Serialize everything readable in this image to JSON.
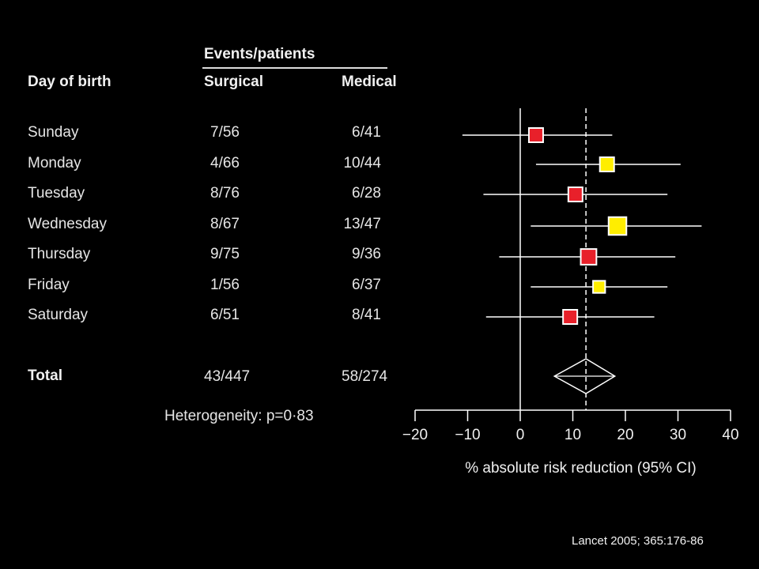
{
  "table": {
    "events_header": "Events/patients",
    "col_day": "Day of birth",
    "col_surgical": "Surgical",
    "col_medical": "Medical",
    "rows": [
      {
        "day": "Sunday",
        "surgical": "7/56",
        "medical": "6/41"
      },
      {
        "day": "Monday",
        "surgical": "4/66",
        "medical": "10/44"
      },
      {
        "day": "Tuesday",
        "surgical": "8/76",
        "medical": "6/28"
      },
      {
        "day": "Wednesday",
        "surgical": "8/67",
        "medical": "13/47"
      },
      {
        "day": "Thursday",
        "surgical": "9/75",
        "medical": "9/36"
      },
      {
        "day": "Friday",
        "surgical": "1/56",
        "medical": "6/37"
      },
      {
        "day": "Saturday",
        "surgical": "6/51",
        "medical": "8/41"
      }
    ],
    "total": {
      "label": "Total",
      "surgical": "43/447",
      "medical": "58/274"
    },
    "heterogeneity": "Heterogeneity: p=0·83"
  },
  "chart_data": {
    "type": "forest",
    "xlabel": "% absolute risk reduction (95% CI)",
    "xlim": [
      -20,
      40
    ],
    "ticks": [
      -20,
      -10,
      0,
      10,
      20,
      30,
      40
    ],
    "tick_labels": [
      "−20",
      "−10",
      "0",
      "10",
      "20",
      "30",
      "40"
    ],
    "reference_line": 0,
    "pooled_line": 12.5,
    "studies": [
      {
        "label": "Sunday",
        "estimate": 3,
        "lo": -11,
        "hi": 17.5,
        "color": "#e8202a",
        "size": 1.0
      },
      {
        "label": "Monday",
        "estimate": 16.5,
        "lo": 3,
        "hi": 30.5,
        "color": "#ffee00",
        "size": 1.0
      },
      {
        "label": "Tuesday",
        "estimate": 10.5,
        "lo": -7,
        "hi": 28,
        "color": "#e8202a",
        "size": 1.0
      },
      {
        "label": "Wednesday",
        "estimate": 18.5,
        "lo": 2,
        "hi": 34.5,
        "color": "#ffee00",
        "size": 1.25
      },
      {
        "label": "Thursday",
        "estimate": 13,
        "lo": -4,
        "hi": 29.5,
        "color": "#e8202a",
        "size": 1.1
      },
      {
        "label": "Friday",
        "estimate": 15,
        "lo": 2,
        "hi": 28,
        "color": "#ffee00",
        "size": 0.85
      },
      {
        "label": "Saturday",
        "estimate": 9.5,
        "lo": -6.5,
        "hi": 25.5,
        "color": "#e8202a",
        "size": 1.0
      }
    ],
    "pooled": {
      "label": "Total",
      "estimate": 12.5,
      "lo": 6.5,
      "hi": 18
    }
  },
  "citation": "Lancet 2005; 365:176-86"
}
